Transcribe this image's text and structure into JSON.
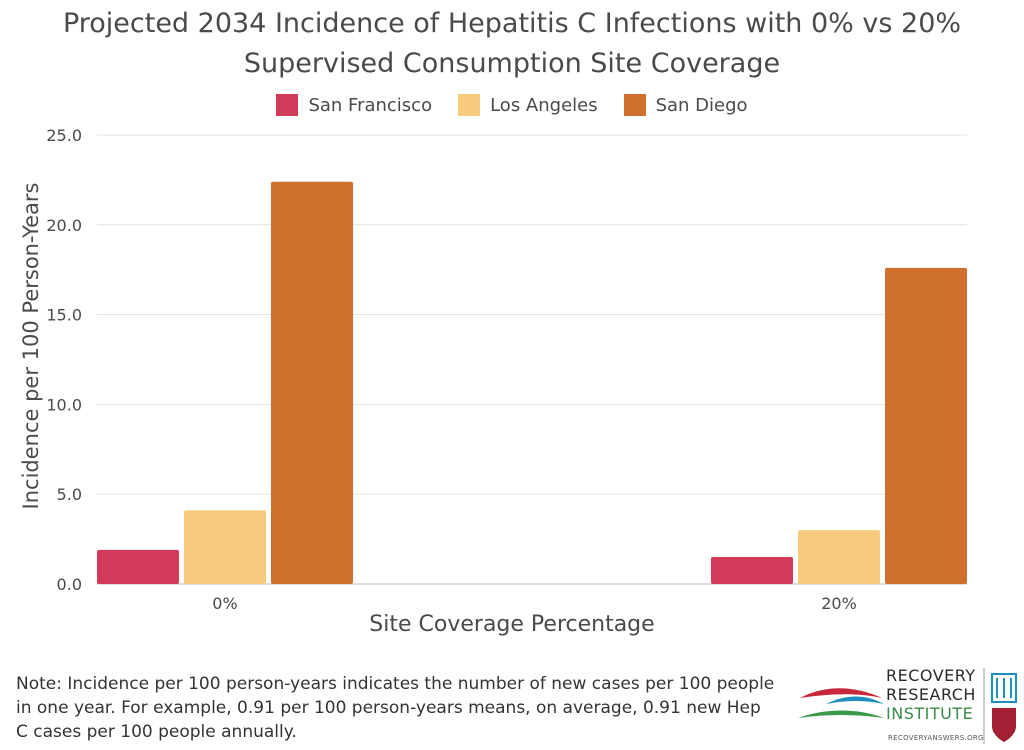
{
  "chart_data": {
    "type": "bar",
    "title_line1": "Projected 2034 Incidence of Hepatitis C Infections with 0% vs 20%",
    "title_line2": "Supervised Consumption Site Coverage",
    "xlabel": "Site Coverage Percentage",
    "ylabel": "Incidence per 100 Person-Years",
    "categories": [
      "0%",
      "20%"
    ],
    "ylim": [
      0,
      25
    ],
    "yticks": [
      "0.0",
      "5.0",
      "10.0",
      "15.0",
      "20.0",
      "25.0"
    ],
    "grid": true,
    "legend_position": "top",
    "series": [
      {
        "name": "San Francisco",
        "color": "#d13b59",
        "values": [
          1.9,
          1.5
        ]
      },
      {
        "name": "Los Angeles",
        "color": "#f6cb7e",
        "values": [
          4.1,
          3.0
        ]
      },
      {
        "name": "San Diego",
        "color": "#d0702f",
        "values": [
          22.4,
          17.6
        ]
      }
    ]
  },
  "note": "Note: Incidence per 100 person-years indicates the number of new cases per 100 people in one year. For example, 0.91 per 100 person-years means, on average, 0.91 new Hep C cases per 100 people annually.",
  "logo": {
    "line1": "RECOVERY",
    "line2": "RESEARCH",
    "line3": "INSTITUTE",
    "url": "RECOVERYANSWERS.ORG"
  }
}
